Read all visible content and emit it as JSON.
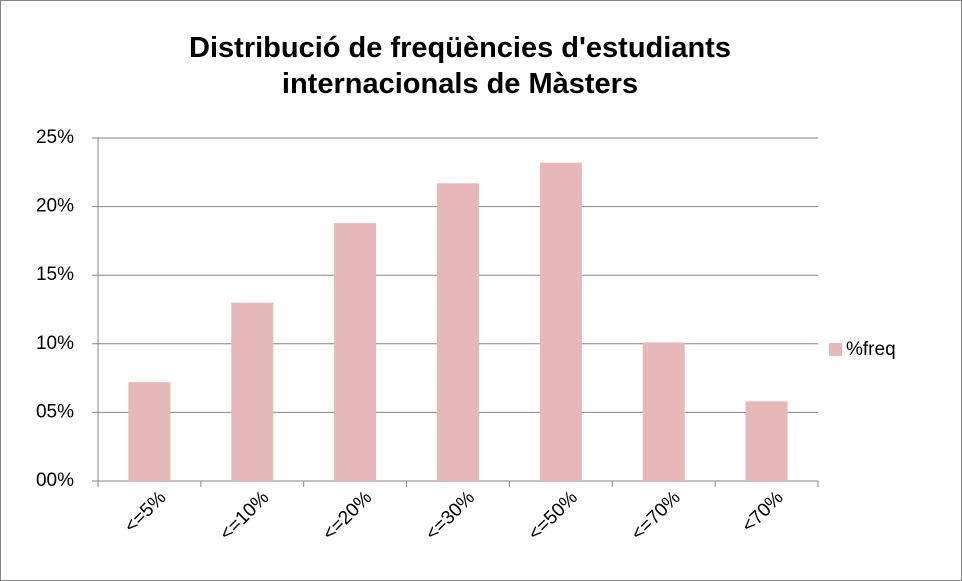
{
  "chart_data": {
    "type": "bar",
    "title": "Distribució de freqüències  d'estudiants internacionals de Màsters",
    "categories": [
      "<=5%",
      "<=10%",
      "<=20%",
      "<=30%",
      "<=50%",
      "<=70%",
      "<70%"
    ],
    "series": [
      {
        "name": "%freq",
        "color": "#e6b9b8",
        "values": [
          7.2,
          13.0,
          18.8,
          21.7,
          23.2,
          10.1,
          5.8
        ]
      }
    ],
    "ylim": [
      0,
      25
    ],
    "yticks": [
      {
        "value": 0,
        "label": "00%"
      },
      {
        "value": 5,
        "label": "05%"
      },
      {
        "value": 10,
        "label": "10%"
      },
      {
        "value": 15,
        "label": "15%"
      },
      {
        "value": 20,
        "label": "20%"
      },
      {
        "value": 25,
        "label": "25%"
      }
    ],
    "grid": true,
    "legend": "right"
  }
}
